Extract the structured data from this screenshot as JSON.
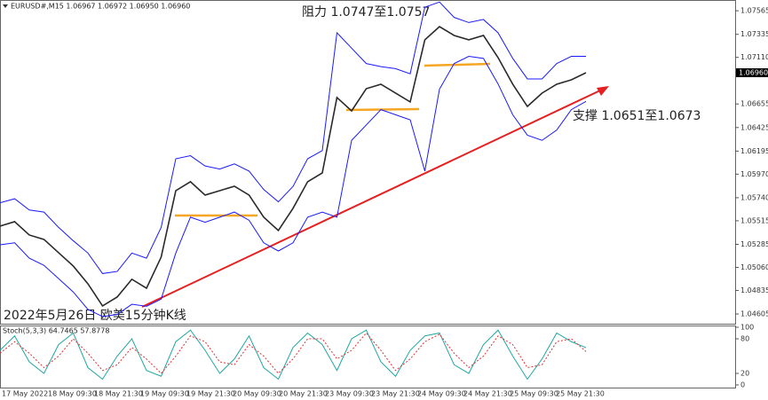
{
  "chart_data": [
    {
      "type": "line",
      "title": "EURUSD#,M15 1.06967 1.06972 1.06950 1.06960",
      "annotations": [
        "阻力 1.0747至1.0757",
        "支撑 1.0651至1.0673",
        "2022年5月26日 欧美15分钟K线"
      ],
      "last_price": {
        "value": 1.0696,
        "label": "1.06960"
      },
      "ylim": [
        1.0451,
        1.0767
      ],
      "yticks": [
        1.07565,
        1.07335,
        {
          "value": 1.0711,
          "label": "1.07110"
        },
        1.06655,
        1.06425,
        1.06195,
        {
          "value": 1.0597,
          "label": "1.05970"
        },
        {
          "value": 1.0574,
          "label": "1.05740"
        },
        1.05515,
        1.05285,
        {
          "value": 1.0506,
          "label": "1.05060"
        },
        1.04835,
        1.04605
      ],
      "series": [
        {
          "name": "Price",
          "color": "#2a2a2a",
          "values": [
            1.05463,
            1.05506,
            1.05376,
            1.05333,
            1.05203,
            1.05073,
            1.049,
            1.04684,
            1.04771,
            1.04944,
            1.04857,
            1.0516,
            1.05809,
            1.05896,
            1.05766,
            1.05809,
            1.05852,
            1.05766,
            1.0555,
            1.0542,
            1.05636,
            1.05896,
            1.05982,
            1.06718,
            1.06588,
            1.06804,
            1.06848,
            1.06761,
            1.06675,
            1.07281,
            1.0741,
            1.07324,
            1.07281,
            1.07324,
            1.07107,
            1.06848,
            1.06631,
            1.06761,
            1.06848,
            1.06891,
            1.0696
          ]
        },
        {
          "name": "Upper band",
          "color": "#1a1aff",
          "values": [
            1.0569,
            1.0573,
            1.0562,
            1.056,
            1.0545,
            1.0532,
            1.052,
            1.05,
            1.0502,
            1.052,
            1.0515,
            1.0545,
            1.0612,
            1.0615,
            1.0605,
            1.0602,
            1.0607,
            1.06,
            1.0582,
            1.057,
            1.0585,
            1.0612,
            1.062,
            1.0735,
            1.072,
            1.0705,
            1.0702,
            1.07,
            1.0695,
            1.076,
            1.0765,
            1.075,
            1.0745,
            1.0748,
            1.0735,
            1.071,
            1.069,
            1.069,
            1.0705,
            1.0712,
            1.0712
          ]
        },
        {
          "name": "Lower band",
          "color": "#1a1aff",
          "values": [
            1.0528,
            1.053,
            1.0515,
            1.0508,
            1.0495,
            1.0482,
            1.0465,
            1.0458,
            1.046,
            1.047,
            1.0468,
            1.0475,
            1.052,
            1.0555,
            1.055,
            1.0555,
            1.056,
            1.0552,
            1.053,
            1.0522,
            1.053,
            1.0555,
            1.056,
            1.0555,
            1.063,
            1.0645,
            1.066,
            1.0655,
            1.065,
            1.06,
            1.068,
            1.0705,
            1.0712,
            1.071,
            1.0685,
            1.0655,
            1.0635,
            1.063,
            1.064,
            1.066,
            1.0668
          ]
        }
      ]
    },
    {
      "type": "line",
      "title": "Stoch(5,3,3) 64.7465 57.8778",
      "ylim": [
        0,
        100
      ],
      "yticks": [
        100,
        80,
        20,
        0
      ],
      "xticks": [
        "17 May 2022",
        "18 May 09:30",
        "18 May 21:30",
        "19 May 09:30",
        "19 May 21:30",
        "20 May 09:30",
        "20 May 21:30",
        "23 May 09:30",
        "23 May 21:30",
        "24 May 09:30",
        "24 May 21:30",
        "25 May 09:30",
        "25 May 21:30"
      ],
      "series": [
        {
          "name": "Main",
          "color": "#20a8a0",
          "values": [
            60,
            85,
            40,
            20,
            70,
            90,
            30,
            10,
            50,
            80,
            25,
            15,
            75,
            95,
            60,
            20,
            45,
            85,
            30,
            10,
            65,
            90,
            70,
            25,
            80,
            95,
            40,
            15,
            60,
            85,
            90,
            35,
            20,
            70,
            95,
            50,
            10,
            45,
            90,
            75,
            64.7465
          ]
        },
        {
          "name": "Signal",
          "color": "#e03030",
          "values": [
            55,
            75,
            55,
            30,
            50,
            80,
            55,
            25,
            35,
            65,
            45,
            20,
            50,
            85,
            75,
            40,
            35,
            70,
            50,
            20,
            45,
            80,
            80,
            45,
            60,
            90,
            60,
            25,
            45,
            75,
            88,
            55,
            30,
            50,
            85,
            70,
            30,
            35,
            75,
            80,
            57.8778
          ]
        }
      ]
    }
  ]
}
